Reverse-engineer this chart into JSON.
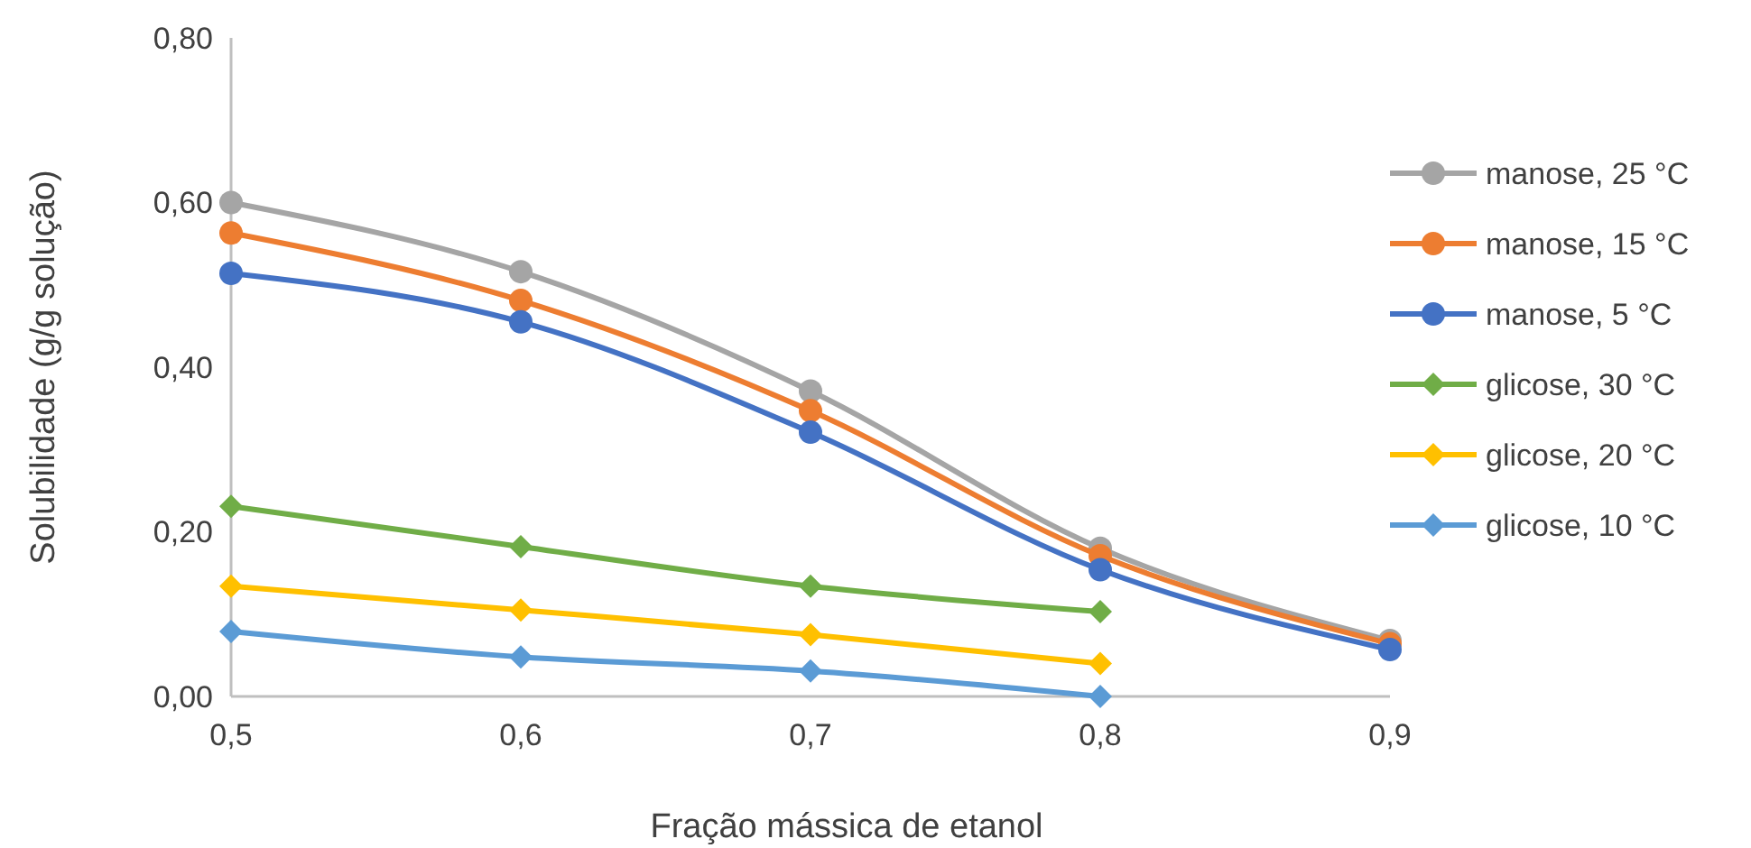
{
  "chart_data": {
    "type": "line",
    "xlabel": "Fração mássica de etanol",
    "ylabel": "Solubilidade  (g/g solução)",
    "xlim": [
      0.5,
      0.9
    ],
    "xticks": [
      {
        "value": 0.5,
        "label": "0,5"
      },
      {
        "value": 0.6,
        "label": "0,6"
      },
      {
        "value": 0.7,
        "label": "0,7"
      },
      {
        "value": 0.8,
        "label": "0,8"
      },
      {
        "value": 0.9,
        "label": "0,9"
      }
    ],
    "ylim": [
      0,
      0.8
    ],
    "yticks": [
      {
        "value": 0,
        "label": "0,00"
      },
      {
        "value": 0.2,
        "label": "0,20"
      },
      {
        "value": 0.4,
        "label": "0,40"
      },
      {
        "value": 0.6,
        "label": "0,60"
      },
      {
        "value": 0.8,
        "label": "0,80"
      }
    ],
    "grid": false,
    "legend": "right",
    "line_style": "solid",
    "series": [
      {
        "name": "manose, 25 °C",
        "color": "#a5a5a5",
        "marker": "circle",
        "x": [
          0.5,
          0.6,
          0.7,
          0.8,
          0.9
        ],
        "values": [
          0.6,
          0.516,
          0.371,
          0.18,
          0.068
        ]
      },
      {
        "name": "manose, 15 °C",
        "color": "#ed7d31",
        "marker": "circle",
        "x": [
          0.5,
          0.6,
          0.7,
          0.8,
          0.9
        ],
        "values": [
          0.563,
          0.481,
          0.347,
          0.171,
          0.064
        ]
      },
      {
        "name": "manose, 5 °C",
        "color": "#4472c4",
        "marker": "circle",
        "x": [
          0.5,
          0.6,
          0.7,
          0.8,
          0.9
        ],
        "values": [
          0.514,
          0.455,
          0.321,
          0.154,
          0.057
        ]
      },
      {
        "name": "glicose, 30 °C",
        "color": "#70ad47",
        "marker": "diamond",
        "x": [
          0.5,
          0.6,
          0.7,
          0.8
        ],
        "values": [
          0.231,
          0.182,
          0.134,
          0.103
        ]
      },
      {
        "name": "glicose, 20 °C",
        "color": "#ffc000",
        "marker": "diamond",
        "x": [
          0.5,
          0.6,
          0.7,
          0.8
        ],
        "values": [
          0.134,
          0.105,
          0.075,
          0.04
        ]
      },
      {
        "name": "glicose, 10 °C",
        "color": "#5b9bd5",
        "marker": "diamond",
        "x": [
          0.5,
          0.6,
          0.7,
          0.8
        ],
        "values": [
          0.079,
          0.048,
          0.031,
          0
        ]
      }
    ]
  }
}
